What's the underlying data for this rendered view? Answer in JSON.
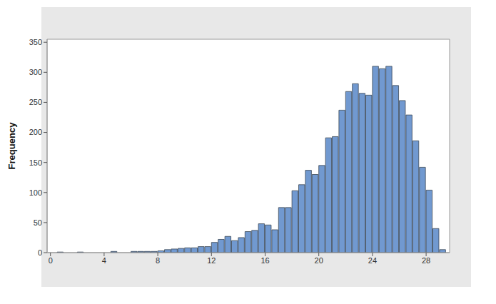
{
  "chart_data": {
    "type": "histogram",
    "y_label": "Frequency",
    "bins": [
      0,
      0.5,
      1,
      1.5,
      2,
      2.5,
      3,
      3.5,
      4,
      4.5,
      5,
      5.5,
      6,
      6.5,
      7,
      7.5,
      8,
      8.5,
      9,
      9.5,
      10,
      10.5,
      11,
      11.5,
      12,
      12.5,
      13,
      13.5,
      14,
      14.5,
      15,
      15.5,
      16,
      16.5,
      17,
      17.5,
      18,
      18.5,
      19,
      19.5,
      20,
      20.5,
      21,
      21.5,
      22,
      22.5,
      23,
      23.5,
      24,
      24.5,
      25,
      25.5,
      26,
      26.5,
      27,
      27.5,
      28,
      28.5,
      29,
      29.5
    ],
    "values": [
      0,
      1,
      0,
      0,
      1,
      0,
      0,
      0,
      0,
      2,
      0,
      0,
      2,
      2,
      2,
      2,
      3,
      5,
      6,
      7,
      8,
      8,
      10,
      10,
      17,
      22,
      27,
      20,
      25,
      35,
      37,
      48,
      46,
      38,
      75,
      75,
      103,
      113,
      137,
      130,
      145,
      191,
      193,
      237,
      268,
      281,
      265,
      262,
      310,
      306,
      310,
      278,
      253,
      229,
      186,
      142,
      104,
      40,
      5
    ],
    "color": "#7199d0",
    "xlim": [
      -0.25,
      29.75
    ],
    "ylim": [
      0,
      355
    ],
    "xticks": [
      0,
      4,
      8,
      12,
      16,
      20,
      24,
      28
    ],
    "yticks": [
      0,
      50,
      100,
      150,
      200,
      250,
      300,
      350
    ],
    "grid": false
  }
}
